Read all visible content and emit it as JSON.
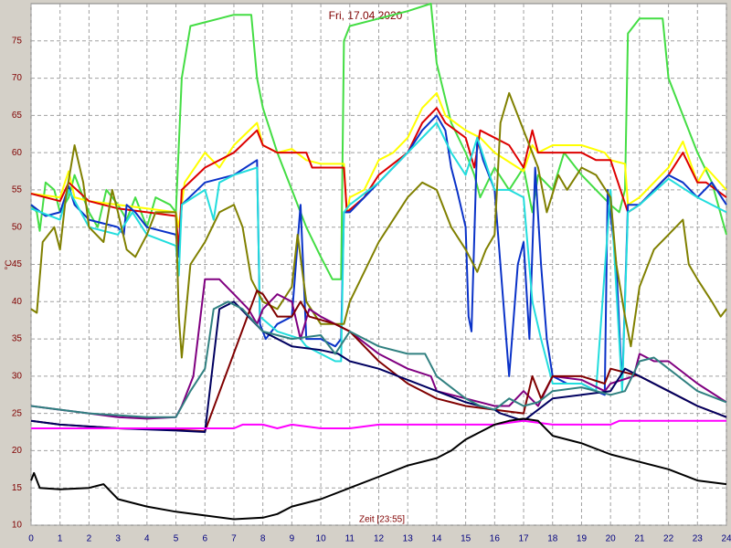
{
  "chart_data": {
    "type": "line",
    "title": "Fri, 17.04.2020",
    "x_label": "Zeit [23:55]",
    "y_label": "°C",
    "xlim": [
      0,
      24
    ],
    "xticks": [
      0,
      1,
      2,
      3,
      4,
      5,
      6,
      7,
      8,
      9,
      10,
      11,
      12,
      13,
      14,
      15,
      16,
      17,
      18,
      19,
      20,
      21,
      22,
      23,
      24
    ],
    "ylim": [
      10,
      80
    ],
    "yticks": [
      10,
      15,
      20,
      25,
      30,
      35,
      40,
      45,
      50,
      55,
      60,
      65,
      70,
      75
    ],
    "grid": true,
    "series": [
      {
        "color": "#44dd44",
        "x": [
          0,
          0.2,
          0.3,
          0.5,
          0.8,
          1,
          1.3,
          1.5,
          2,
          2.3,
          2.6,
          3,
          3.3,
          3.6,
          4,
          4.3,
          4.8,
          5,
          5.2,
          5.5,
          6,
          6.5,
          7,
          7.6,
          7.8,
          8,
          8.5,
          9,
          9.5,
          10,
          10.4,
          10.7,
          10.8,
          11,
          12,
          13,
          13.8,
          14,
          14.5,
          15,
          15.3,
          15.5,
          16,
          16.5,
          17,
          17.3,
          17.5,
          18,
          18.4,
          19,
          19.5,
          20,
          20.3,
          20.5,
          20.6,
          21,
          21.8,
          22,
          22.5,
          23,
          23.5,
          24
        ],
        "values": [
          53,
          52,
          49.5,
          56,
          55,
          52,
          54,
          57,
          52,
          50,
          55,
          53,
          51,
          54,
          50,
          54,
          53,
          52,
          70,
          77,
          77.5,
          78,
          78.5,
          78.5,
          70,
          66,
          60,
          55,
          50,
          46,
          43,
          43,
          75,
          77,
          78,
          79,
          80,
          72,
          64,
          60,
          57,
          54,
          58,
          55,
          58,
          52,
          57,
          55,
          60,
          57,
          55,
          53,
          52,
          55,
          76,
          78,
          78,
          70,
          65,
          60,
          56,
          49
        ]
      },
      {
        "color": "#ffff00",
        "x": [
          0,
          1,
          1.3,
          1.5,
          2,
          3,
          4,
          5,
          5.1,
          5.3,
          6,
          6.5,
          7,
          7.8,
          8,
          8.5,
          9,
          9.5,
          10,
          10.8,
          10.9,
          11,
          11.5,
          12,
          12.5,
          13,
          13.5,
          14,
          14.3,
          15,
          15.5,
          16,
          17,
          17.3,
          17.5,
          18,
          19,
          19.8,
          20,
          20.5,
          20.6,
          21,
          22,
          22.5,
          23,
          23.3,
          24
        ],
        "values": [
          54.5,
          54,
          57.5,
          54,
          53.5,
          53,
          52.5,
          52,
          50,
          56,
          60,
          58,
          61,
          64,
          61,
          60,
          60.5,
          59,
          58.5,
          58.5,
          52,
          54,
          55,
          59,
          60,
          62,
          66,
          68,
          65,
          63,
          62,
          60,
          57.5,
          61,
          60,
          61,
          61,
          60,
          59,
          58.5,
          53,
          54,
          58,
          61.5,
          56,
          58,
          55
        ]
      },
      {
        "color": "#dd0000",
        "x": [
          0,
          1,
          1.3,
          2,
          3,
          4,
          5,
          5.1,
          5.2,
          6,
          7,
          7.8,
          8,
          8.5,
          9.5,
          9.7,
          10.8,
          10.9,
          11.5,
          12,
          13,
          13.5,
          14,
          14.3,
          15,
          15.3,
          15.5,
          16,
          16.5,
          17,
          17.3,
          17.5,
          19,
          19.5,
          20,
          20.6,
          21,
          22,
          22.5,
          23,
          23.3,
          24
        ],
        "values": [
          54.5,
          53.5,
          56,
          53.5,
          52.5,
          52,
          51.5,
          47,
          55,
          58,
          60,
          63,
          61,
          60,
          60,
          58,
          58,
          52,
          54,
          57,
          60,
          64,
          66,
          64,
          62,
          58,
          63,
          62,
          61,
          58,
          63,
          60,
          60,
          59,
          59,
          52,
          53,
          57,
          60,
          56,
          56,
          54
        ]
      },
      {
        "color": "#0a32c8",
        "x": [
          0,
          0.5,
          1,
          1.3,
          1.5,
          2,
          3,
          3.2,
          3.3,
          3.6,
          4,
          5,
          5.1,
          5.2,
          6,
          7,
          7.8,
          7.9,
          8.1,
          8.5,
          9,
          9.3,
          9.5,
          10,
          10.5,
          10.7,
          10.8,
          11,
          12,
          13,
          13.5,
          14,
          14.3,
          14.5,
          14.7,
          15,
          15.1,
          15.2,
          15.4,
          15.6,
          16,
          16.3,
          16.5,
          16.8,
          17,
          17.2,
          17.4,
          17.6,
          17.8,
          18,
          18.5,
          19,
          19.5,
          19.8,
          19.9,
          20.2,
          20.4,
          20.6,
          21,
          22,
          22.5,
          23,
          23.5,
          24
        ],
        "values": [
          53,
          51.5,
          52,
          55.5,
          53,
          51,
          50,
          49,
          53,
          52,
          50,
          49,
          46,
          53,
          56,
          57,
          59,
          37,
          35,
          37,
          38,
          53,
          35,
          35,
          34,
          35,
          52,
          52,
          56,
          60,
          63,
          65,
          63,
          58,
          55,
          50,
          38,
          36,
          62,
          59,
          55,
          40,
          30,
          45,
          48,
          35,
          58,
          45,
          35,
          30,
          29,
          29,
          28,
          27.5,
          55,
          45,
          28.5,
          53,
          53,
          57,
          56,
          54,
          56,
          53
        ]
      },
      {
        "color": "#22dddd",
        "x": [
          0,
          1,
          1.3,
          2,
          3,
          3.5,
          4,
          5,
          5.1,
          5.2,
          6,
          6.3,
          6.5,
          7,
          7.8,
          7.9,
          8.5,
          9.3,
          9.5,
          10.5,
          10.7,
          10.8,
          11,
          12,
          13,
          14,
          14.5,
          15,
          15.4,
          16,
          16.5,
          17,
          17.3,
          17.6,
          18,
          19,
          19.5,
          20,
          20.4,
          20.6,
          21,
          22,
          23,
          24
        ],
        "values": [
          52.5,
          51,
          55,
          50,
          49,
          52,
          49,
          47.5,
          43.5,
          53,
          55,
          51,
          56,
          57,
          58,
          38,
          36,
          35,
          34,
          32,
          32,
          52,
          53,
          56,
          60,
          64,
          60,
          57,
          62,
          55,
          55,
          54,
          40,
          35,
          29,
          29,
          28,
          55,
          28,
          52,
          53,
          56.5,
          54,
          52
        ]
      },
      {
        "color": "#808000",
        "x": [
          0,
          0.2,
          0.4,
          0.8,
          1,
          1.2,
          1.5,
          1.8,
          2,
          2.5,
          2.8,
          3,
          3.3,
          3.6,
          4,
          4.3,
          5,
          5.1,
          5.2,
          5.5,
          6,
          6.5,
          7,
          7.3,
          7.6,
          8,
          8.5,
          9,
          9.2,
          9.5,
          10,
          10.8,
          11,
          12,
          13,
          13.5,
          14,
          14.5,
          15,
          15.4,
          15.7,
          16,
          16.2,
          16.5,
          17,
          17.5,
          17.8,
          18.2,
          18.5,
          19,
          19.5,
          20,
          20.2,
          20.5,
          20.7,
          21,
          21.5,
          22,
          22.5,
          22.7,
          23,
          23.5,
          23.8,
          24
        ],
        "values": [
          39,
          38.5,
          48,
          50,
          47,
          54,
          61,
          56,
          50,
          48,
          55,
          52,
          47,
          46,
          49,
          52,
          52,
          38,
          32.5,
          45,
          48,
          52,
          53,
          50,
          43,
          40,
          39,
          42,
          49,
          40,
          37,
          37,
          40,
          48,
          54,
          56,
          55,
          50,
          47,
          44,
          47,
          49,
          64,
          68,
          63,
          58,
          52,
          57,
          55,
          58,
          57,
          54,
          45,
          38,
          34,
          42,
          47,
          49,
          51,
          45,
          43,
          40,
          38,
          39
        ]
      },
      {
        "color": "#800080",
        "x": [
          0,
          1,
          2,
          3,
          4,
          5,
          5.2,
          5.6,
          6,
          6.5,
          7,
          7.5,
          7.8,
          8,
          8.5,
          9,
          9.3,
          9.6,
          10,
          10.5,
          11,
          12,
          13,
          13.8,
          14,
          15,
          16,
          16.5,
          17,
          17.5,
          18,
          19,
          19.8,
          20,
          20.8,
          21,
          21.5,
          22,
          23,
          24
        ],
        "values": [
          26,
          25.5,
          25,
          24.5,
          24.3,
          24.5,
          26,
          30,
          43,
          43,
          41,
          39,
          37,
          39,
          41,
          40,
          35,
          39,
          38,
          37,
          36,
          33,
          31,
          30,
          28,
          27,
          26,
          26,
          28,
          26,
          30,
          29.5,
          28,
          29,
          30,
          33,
          32,
          32,
          29,
          26.5
        ]
      },
      {
        "color": "#800000",
        "x": [
          0,
          1,
          3,
          5,
          6,
          7.8,
          8,
          8.5,
          9,
          9.3,
          9.6,
          10.5,
          11,
          12,
          13,
          14,
          15,
          16,
          17,
          17.3,
          17.6,
          18,
          19,
          19.8,
          20,
          21,
          22,
          23,
          24
        ],
        "values": [
          24,
          23.5,
          23,
          22.8,
          22.6,
          41.5,
          41,
          38,
          38,
          40,
          38,
          37,
          36,
          32,
          29,
          27,
          26,
          25.5,
          25,
          30,
          27,
          30,
          30,
          29,
          31,
          30,
          28,
          26,
          24.5
        ]
      },
      {
        "color": "#000060",
        "x": [
          0,
          1,
          3,
          5,
          6,
          6.5,
          7,
          7.5,
          8,
          9,
          10,
          10.6,
          11,
          12,
          13,
          14,
          15,
          16,
          16.2,
          17,
          18,
          19,
          20,
          20.5,
          21,
          22,
          23,
          24
        ],
        "values": [
          24,
          23.5,
          23,
          22.7,
          22.5,
          39,
          40,
          38,
          36,
          34,
          33.5,
          33,
          32,
          31,
          29.5,
          28,
          26.5,
          25.5,
          25,
          24,
          27,
          27.5,
          28,
          31,
          30,
          28,
          26,
          24.5
        ]
      },
      {
        "color": "#308080",
        "x": [
          0,
          2,
          4,
          5,
          5.5,
          6,
          6.3,
          6.8,
          7.3,
          8,
          9,
          10,
          10.5,
          11,
          12,
          13,
          13.6,
          14,
          15,
          15.5,
          16,
          16.5,
          17,
          17.5,
          18,
          19,
          20,
          20.5,
          21,
          21.5,
          22,
          23,
          24
        ],
        "values": [
          26,
          25,
          24.5,
          24.5,
          28,
          31,
          39,
          40,
          39,
          36,
          35,
          35.5,
          33,
          36,
          34,
          33,
          33,
          30,
          27,
          26,
          25.5,
          27,
          26,
          26.5,
          28,
          28.5,
          27.5,
          28,
          32,
          32.5,
          31,
          28,
          26.5
        ]
      },
      {
        "color": "#ff00ff",
        "x": [
          0,
          4,
          5,
          6,
          7,
          7.3,
          8,
          8.5,
          9,
          10,
          11,
          12,
          13,
          14,
          15,
          16,
          17,
          18,
          19,
          20,
          20.3,
          21,
          22,
          23,
          24
        ],
        "values": [
          23,
          23,
          23,
          23,
          23,
          23.5,
          23.5,
          23,
          23.5,
          23,
          23,
          23.5,
          23.5,
          23.5,
          23.5,
          23.5,
          24,
          23.5,
          23.5,
          23.5,
          24,
          24,
          24,
          24,
          24
        ]
      },
      {
        "color": "#000000",
        "x": [
          0,
          0.1,
          0.3,
          1,
          2,
          2.5,
          3,
          4,
          5,
          6,
          7,
          8,
          8.5,
          9,
          10,
          11,
          12,
          13,
          14,
          14.5,
          15,
          15.5,
          16,
          16.5,
          17,
          17.5,
          18,
          19,
          20,
          21,
          22,
          23,
          24
        ],
        "values": [
          16,
          17,
          15,
          14.8,
          15,
          15.5,
          13.5,
          12.5,
          11.8,
          11.3,
          10.8,
          11,
          11.5,
          12.5,
          13.5,
          15,
          16.5,
          18,
          19,
          20,
          21.5,
          22.5,
          23.5,
          24,
          24.3,
          24,
          22,
          21,
          19.5,
          18.5,
          17.5,
          16,
          15.5
        ]
      }
    ]
  }
}
